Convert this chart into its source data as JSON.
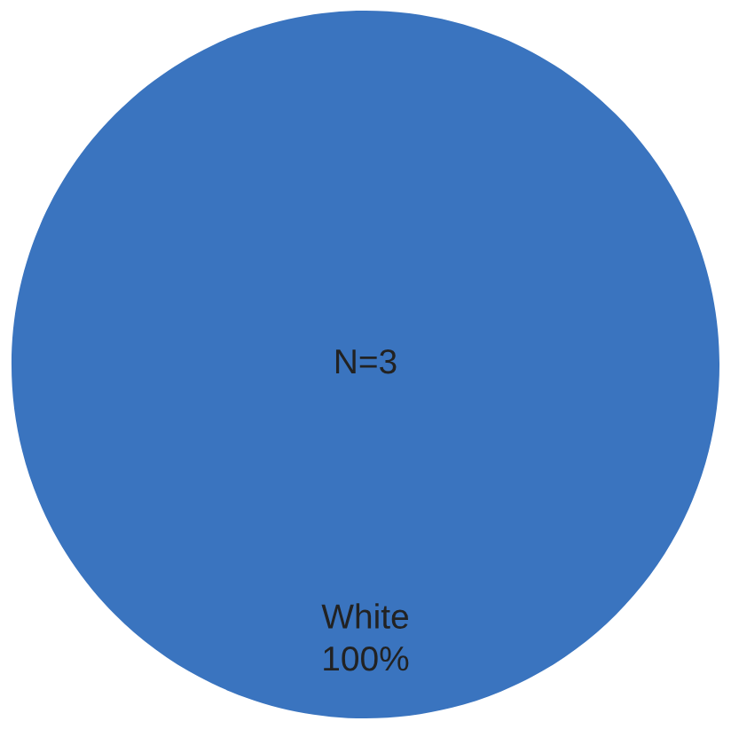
{
  "chart_data": {
    "type": "pie",
    "categories": [
      "White"
    ],
    "values": [
      100
    ],
    "colors": [
      "#3a74bf"
    ],
    "value_labels": [
      "100%"
    ],
    "annotations": [
      "N=3"
    ],
    "legend": false
  }
}
